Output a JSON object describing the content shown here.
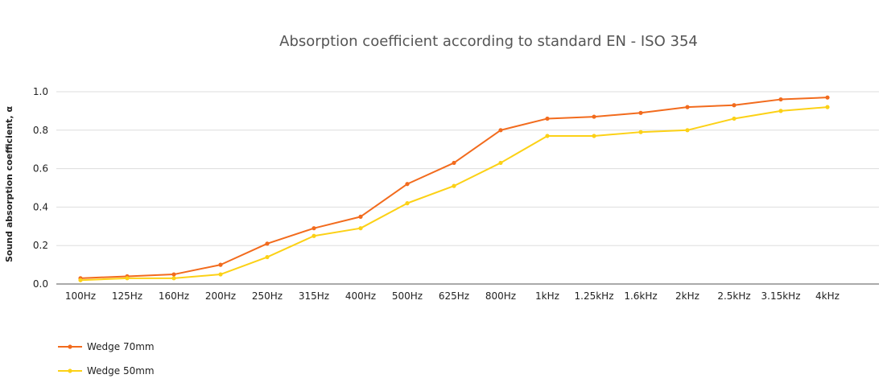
{
  "chart_data": {
    "type": "line",
    "title": "Absorption coefficient according to standard EN - ISO 354",
    "xlabel": "",
    "ylabel": "Sound absorption coefficient, α",
    "ylim": [
      0,
      1
    ],
    "yticks": [
      "0.0",
      "0.2",
      "0.4",
      "0.6",
      "0.8",
      "1.0"
    ],
    "grid": true,
    "legend_position": "bottom-left",
    "categories": [
      "100Hz",
      "125Hz",
      "160Hz",
      "200Hz",
      "250Hz",
      "315Hz",
      "400Hz",
      "500Hz",
      "625Hz",
      "800Hz",
      "1kHz",
      "1.25kHz",
      "1.6kHz",
      "2kHz",
      "2.5kHz",
      "3.15kHz",
      "4kHz"
    ],
    "series": [
      {
        "name": "Wedge 70mm",
        "color": "#f26b1d",
        "values": [
          0.03,
          0.04,
          0.05,
          0.1,
          0.21,
          0.29,
          0.35,
          0.52,
          0.63,
          0.8,
          0.86,
          0.87,
          0.89,
          0.92,
          0.93,
          0.96,
          0.97
        ]
      },
      {
        "name": "Wedge 50mm",
        "color": "#fcd116",
        "values": [
          0.02,
          0.03,
          0.03,
          0.05,
          0.14,
          0.25,
          0.29,
          0.42,
          0.51,
          0.63,
          0.77,
          0.77,
          0.79,
          0.8,
          0.86,
          0.9,
          0.92
        ]
      }
    ]
  }
}
